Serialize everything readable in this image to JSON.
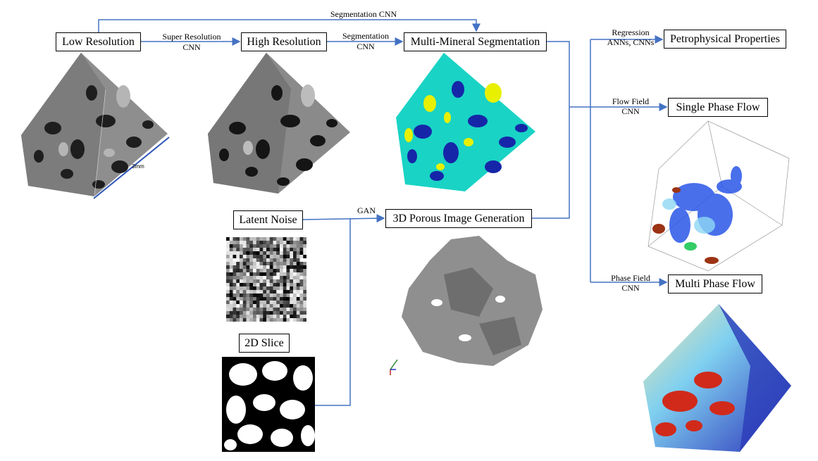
{
  "boxes": {
    "low_res": "Low Resolution",
    "high_res": "High Resolution",
    "multi_mineral": "Multi-Mineral Segmentation",
    "petrophysical": "Petrophysical Properties",
    "single_phase": "Single Phase Flow",
    "multi_phase": "Multi Phase Flow",
    "latent_noise": "Latent Noise",
    "porous_gen": "3D Porous Image Generation",
    "slice_2d": "2D Slice"
  },
  "edge_labels": {
    "seg_cnn_top": "Segmentation CNN",
    "super_res_1": "Super Resolution",
    "super_res_2": "CNN",
    "segmentation_1": "Segmentation",
    "segmentation_2": "CNN",
    "regression_1": "Regression",
    "regression_2": "ANNs, CNNs",
    "flow_field_1": "Flow Field",
    "flow_field_2": "CNN",
    "phase_field_1": "Phase Field",
    "phase_field_2": "CNN",
    "gan": "GAN"
  },
  "scale_label": "3mm",
  "colors": {
    "arrow": "#4472c4",
    "cube_gray": "#8a8a8a",
    "seg_cyan": "#19d3c5",
    "seg_yellow": "#e8f000",
    "seg_blue": "#1626a8",
    "flow_red": "#c0281a"
  }
}
